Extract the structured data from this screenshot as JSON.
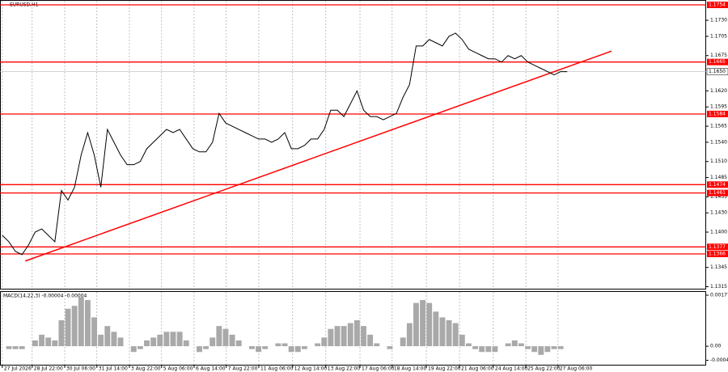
{
  "chart_data": [
    {
      "type": "line",
      "title": "EURUSD,H1",
      "color": "#000000",
      "grid": true,
      "x": [
        0,
        2,
        4,
        6,
        8,
        10,
        12,
        14,
        16,
        18,
        20,
        22,
        24,
        26,
        28,
        30,
        32,
        34,
        36,
        38,
        40,
        42,
        44,
        46,
        48,
        50,
        52,
        54,
        56,
        58,
        60,
        62,
        64,
        66,
        68,
        70,
        72,
        74,
        76,
        78,
        80,
        82,
        84,
        86,
        88,
        90,
        92,
        94,
        96,
        98,
        100,
        102,
        104,
        106,
        108,
        110,
        112,
        114,
        116,
        118,
        120,
        122,
        124,
        126,
        128,
        130,
        132,
        134,
        136,
        138,
        140,
        142,
        144,
        146,
        148,
        150,
        152,
        154,
        156,
        158,
        160,
        162,
        164,
        166,
        168,
        170,
        172
      ],
      "values": [
        1.1395,
        1.1385,
        1.137,
        1.1365,
        1.138,
        1.14,
        1.1405,
        1.1395,
        1.1385,
        1.1465,
        1.145,
        1.147,
        1.152,
        1.1555,
        1.152,
        1.147,
        1.156,
        1.154,
        1.152,
        1.1505,
        1.1505,
        1.151,
        1.153,
        1.154,
        1.155,
        1.156,
        1.1555,
        1.156,
        1.1545,
        1.153,
        1.1525,
        1.1525,
        1.154,
        1.1585,
        1.157,
        1.1565,
        1.156,
        1.1555,
        1.155,
        1.1545,
        1.1545,
        1.154,
        1.1545,
        1.1555,
        1.153,
        1.153,
        1.1535,
        1.1545,
        1.1545,
        1.156,
        1.159,
        1.159,
        1.158,
        1.16,
        1.162,
        1.159,
        1.158,
        1.158,
        1.1575,
        1.158,
        1.1585,
        1.161,
        1.163,
        1.169,
        1.169,
        1.17,
        1.1695,
        1.169,
        1.1705,
        1.171,
        1.17,
        1.1685,
        1.168,
        1.1675,
        1.167,
        1.167,
        1.1665,
        1.1675,
        1.167,
        1.1675,
        1.1665,
        1.166,
        1.1655,
        1.165,
        1.1645,
        1.165,
        1.165
      ],
      "xlim": [
        -0.7,
        214.3
      ],
      "ylim": [
        1.13106,
        1.17616
      ],
      "yticks": [
        {
          "value": 1.173,
          "label": "1.1730"
        },
        {
          "value": 1.1705,
          "label": "1.1705"
        },
        {
          "value": 1.1675,
          "label": "1.1675"
        },
        {
          "value": 1.162,
          "label": "1.1620"
        },
        {
          "value": 1.1595,
          "label": "1.1595"
        },
        {
          "value": 1.1565,
          "label": "1.1565"
        },
        {
          "value": 1.154,
          "label": "1.1540"
        },
        {
          "value": 1.151,
          "label": "1.1510"
        },
        {
          "value": 1.1485,
          "label": "1.1485"
        },
        {
          "value": 1.1455,
          "label": "1.1455"
        },
        {
          "value": 1.143,
          "label": "1.1430"
        },
        {
          "value": 1.14,
          "label": "1.1400"
        },
        {
          "value": 1.1345,
          "label": "1.1345"
        },
        {
          "value": 1.1315,
          "label": "1.1315"
        }
      ],
      "levels": [
        1.1754,
        1.1665,
        1.1584,
        1.1474,
        1.1461,
        1.1377,
        1.1366
      ],
      "level_color": "#ff0000",
      "current_price": {
        "value": 1.165,
        "label": "1.1650"
      },
      "trendline": {
        "x": [
          7,
          185.5
        ],
        "values": [
          1.1355,
          1.1682
        ]
      }
    },
    {
      "type": "bar",
      "title": "MACD(14,22,3) -0.00004 -0.00004",
      "color": "#a9a9a9",
      "x": [
        0,
        2,
        4,
        6,
        8,
        10,
        12,
        14,
        16,
        18,
        20,
        22,
        24,
        26,
        28,
        30,
        32,
        34,
        36,
        38,
        40,
        42,
        44,
        46,
        48,
        50,
        52,
        54,
        56,
        58,
        60,
        62,
        64,
        66,
        68,
        70,
        72,
        74,
        76,
        78,
        80,
        82,
        84,
        86,
        88,
        90,
        92,
        94,
        96,
        98,
        100,
        102,
        104,
        106,
        108,
        110,
        112,
        114,
        116,
        118,
        120,
        122,
        124,
        126,
        128,
        130,
        132,
        134,
        136,
        138,
        140,
        142,
        144,
        146,
        148,
        150,
        152,
        154,
        156,
        158,
        160,
        162,
        164,
        166,
        168,
        170,
        172
      ],
      "values": [
        0,
        -0.0001,
        -0.0001,
        -0.0001,
        0,
        0.0002,
        0.0004,
        0.0003,
        0.0002,
        0.0009,
        0.0013,
        0.0014,
        0.0017,
        0.0016,
        0.001,
        0.0004,
        0.0007,
        0.0005,
        0.0003,
        0,
        -0.0002,
        -0.0001,
        0.0002,
        0.0003,
        0.0004,
        0.0005,
        0.0005,
        0.0005,
        0.0002,
        0,
        -0.0002,
        -0.0001,
        0.0003,
        0.0007,
        0.0006,
        0.0004,
        0.0002,
        0,
        -0.0001,
        -0.0002,
        -0.0001,
        0,
        0.0001,
        0.0001,
        -0.0002,
        -0.0002,
        -0.0001,
        0,
        0.0001,
        0.0003,
        0.0006,
        0.0007,
        0.0007,
        0.0008,
        0.0009,
        0.0007,
        0.0004,
        0.0001,
        0,
        -0.0001,
        0,
        0.0003,
        0.0008,
        0.0015,
        0.0016,
        0.0015,
        0.0012,
        0.001,
        0.0009,
        0.0008,
        0.0004,
        0.0001,
        -0.0001,
        -0.0002,
        -0.0002,
        -0.0002,
        0,
        0.0001,
        0.0002,
        0.0001,
        -0.0001,
        -0.0002,
        -0.0003,
        -0.0002,
        -0.0001,
        -0.0001,
        0
      ],
      "xlim": [
        -0.7,
        214.3
      ],
      "ylim": [
        -0.00067,
        0.00191
      ],
      "yticks": [
        0.00177,
        {
          "value": 0,
          "label": "0.00"
        },
        -0.00049
      ],
      "xticks": [
        {
          "value": 0,
          "label": "27 Jul 2026"
        },
        {
          "value": 9.1,
          "label": "28 Jul 22:00"
        },
        {
          "value": 19,
          "label": "30 Jul 06:00"
        },
        {
          "value": 28.8,
          "label": "31 Jul 14:00"
        },
        {
          "value": 38.7,
          "label": "3 Aug 22:00"
        },
        {
          "value": 48.5,
          "label": "5 Aug 06:00"
        },
        {
          "value": 58.4,
          "label": "6 Aug 14:00"
        },
        {
          "value": 68.2,
          "label": "7 Aug 22:00"
        },
        {
          "value": 78.1,
          "label": "11 Aug 06:00"
        },
        {
          "value": 88.4,
          "label": "12 Aug 14:00"
        },
        {
          "value": 98.5,
          "label": "13 Aug 22:00"
        },
        {
          "value": 108.9,
          "label": "17 Aug 06:00"
        },
        {
          "value": 118.7,
          "label": "18 Aug 14:00"
        },
        {
          "value": 129.1,
          "label": "19 Aug 22:00"
        },
        {
          "value": 139.2,
          "label": "21 Aug 06:00"
        },
        {
          "value": 149.5,
          "label": "24 Aug 14:00"
        },
        {
          "value": 159.4,
          "label": "25 Aug 22:00"
        },
        {
          "value": 169.2,
          "label": "27 Aug 06:00"
        }
      ]
    }
  ]
}
